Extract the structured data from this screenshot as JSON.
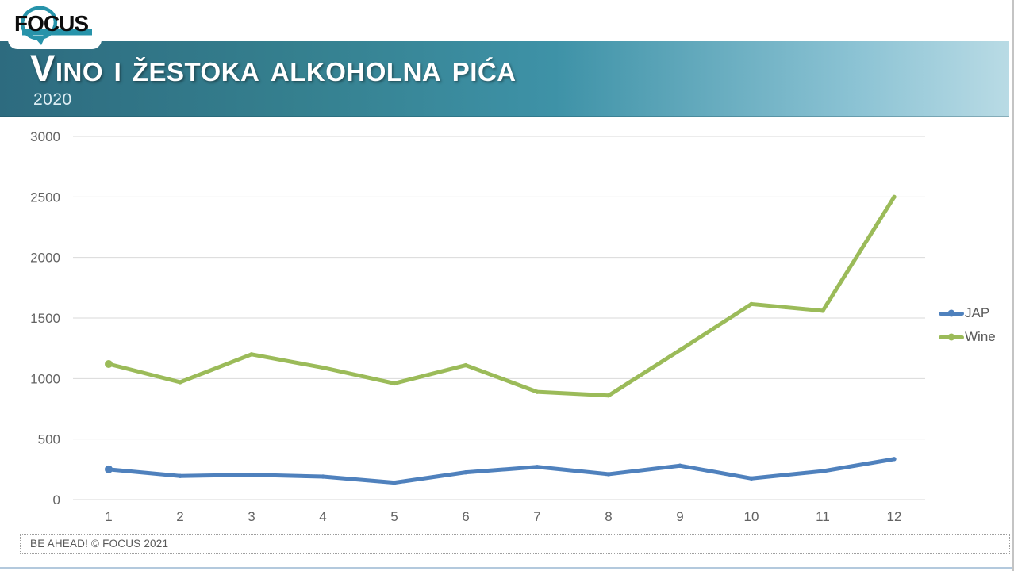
{
  "header": {
    "logo_text": "FOCUS",
    "title": "Vino i žestoka alkoholna pića",
    "subtitle": "2020"
  },
  "chart_data": {
    "type": "line",
    "title": "Vino i žestoka alkoholna pića 2020",
    "x": [
      1,
      2,
      3,
      4,
      5,
      6,
      7,
      8,
      9,
      10,
      11,
      12
    ],
    "xlabel": "",
    "ylabel": "",
    "ylim": [
      0,
      3000
    ],
    "ytick_step": 500,
    "grid": true,
    "legend_position": "right",
    "series": [
      {
        "name": "JAP",
        "color": "#4F81BD",
        "values": [
          250,
          195,
          205,
          190,
          140,
          225,
          270,
          210,
          280,
          175,
          235,
          335
        ]
      },
      {
        "name": "Wine",
        "color": "#9BBB59",
        "values": [
          1120,
          970,
          1200,
          1090,
          960,
          1110,
          890,
          860,
          1235,
          1615,
          1560,
          2500
        ]
      }
    ]
  },
  "footer": {
    "text": "BE AHEAD! © FOCUS 2021"
  },
  "colors": {
    "band_gradient_start": "#2d6b7f",
    "band_gradient_mid": "#3e92a7",
    "band_gradient_end": "#b9dbe5",
    "logo_teal": "#2793aa",
    "grid_line": "#d9d9d9",
    "tick_text": "#636363",
    "bottom_rule": "#b3c9dd"
  }
}
